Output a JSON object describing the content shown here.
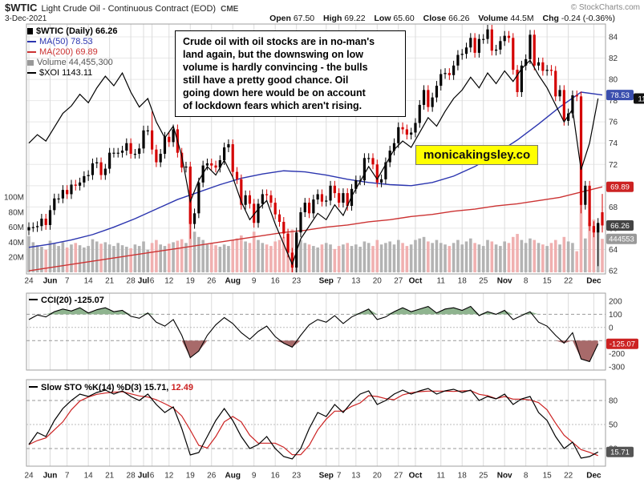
{
  "header": {
    "symbol": "$WTIC",
    "title": "Light Crude Oil - Continuous Contract (EOD)",
    "exchange": "CME",
    "copyright": "© StockCharts.com",
    "date": "3-Dec-2021",
    "quote": {
      "open_label": "Open",
      "open": "67.50",
      "high_label": "High",
      "high": "69.22",
      "low_label": "Low",
      "low": "65.60",
      "close_label": "Close",
      "close": "66.26",
      "volume_label": "Volume",
      "volume": "44.5M",
      "chg_label": "Chg",
      "chg": "-0.24 (-0.36%)"
    }
  },
  "main_legend": {
    "wtic": "$WTIC (Daily) 66.26",
    "ma50": "MA(50) 78.53",
    "ma200": "MA(200) 69.89",
    "volume": "Volume 44,455,300",
    "xoi": "$XOI 1143.11"
  },
  "annotation": {
    "lines": [
      "Crude oil with oil stocks are in no-man's",
      "land again, but the downswing on low",
      "volume is hardly convincing - the bulls",
      "still have a pretty good chance. Oil",
      "going down here would be on account",
      "of lockdown fears which aren't rising."
    ]
  },
  "watermark": "monicakingsley.co",
  "cci_legend": {
    "label": "CCI(20)",
    "value": "-125.07"
  },
  "sto_legend": {
    "label": "Slow STO %K(14) %D(3)",
    "k": "15.71,",
    "d": "12.49"
  },
  "colors": {
    "candle_up": "#000000",
    "candle_down": "#d40000",
    "ma50": "#2b35af",
    "ma200": "#cc3333",
    "xoi": "#000000",
    "vol_up": "#b3b3b3",
    "vol_down": "#f0b0b0",
    "cci_line": "#000000",
    "cci_green": "#8fb48f",
    "cci_red": "#a86a6a",
    "sto_k": "#000000",
    "sto_d": "#cc2222",
    "grid": "#dcdcdc",
    "hgrid": "#e8e8e8",
    "frame": "#9f9f9f",
    "axis_text": "#333333",
    "watermark_bg": "#ffff00",
    "callout_blue": "#3a4eae",
    "callout_red": "#cc2222",
    "callout_dark": "#444444",
    "callout_gray": "#999999",
    "callout_black": "#111111"
  },
  "chart_data": [
    {
      "type": "candlestick",
      "title": "$WTIC (Daily)",
      "ylabel": "Price",
      "ylim": [
        62,
        84
      ],
      "yticks": [
        84,
        82,
        80,
        78,
        76,
        74,
        72,
        70,
        68,
        66,
        64,
        62
      ],
      "volume_ticks": [
        [
          "100M",
          100
        ],
        [
          "80M",
          80
        ],
        [
          "60M",
          60
        ],
        [
          "40M",
          40
        ],
        [
          "20M",
          20
        ]
      ],
      "xticks": [
        [
          "24",
          0
        ],
        [
          "Jun",
          5,
          1
        ],
        [
          "7",
          9
        ],
        [
          "14",
          14
        ],
        [
          "21",
          19
        ],
        [
          "28",
          24
        ],
        [
          "Jul",
          27,
          1
        ],
        [
          "6",
          29
        ],
        [
          "12",
          33
        ],
        [
          "19",
          38
        ],
        [
          "26",
          43
        ],
        [
          "Aug",
          48,
          1
        ],
        [
          "9",
          53
        ],
        [
          "16",
          58
        ],
        [
          "23",
          63
        ],
        [
          "Sep",
          70,
          1
        ],
        [
          "7",
          73
        ],
        [
          "13",
          77
        ],
        [
          "20",
          82
        ],
        [
          "27",
          87
        ],
        [
          "Oct",
          91,
          1
        ],
        [
          "11",
          97
        ],
        [
          "18",
          102
        ],
        [
          "25",
          107
        ],
        [
          "Nov",
          112,
          1
        ],
        [
          "8",
          117
        ],
        [
          "15",
          122
        ],
        [
          "22",
          127
        ],
        [
          "Dec",
          133,
          1
        ]
      ],
      "closes": [
        66.1,
        66.1,
        66.2,
        66.9,
        66.3,
        67.7,
        68.8,
        68.8,
        69.6,
        69.2,
        70.1,
        70.0,
        70.3,
        70.9,
        71.0,
        72.1,
        72.2,
        71.0,
        71.6,
        73.1,
        73.1,
        73.1,
        73.3,
        74.0,
        73.0,
        73.0,
        73.5,
        75.2,
        75.2,
        73.4,
        72.2,
        73.0,
        74.6,
        74.1,
        75.3,
        73.1,
        71.7,
        71.8,
        66.4,
        67.4,
        70.3,
        71.9,
        72.1,
        71.9,
        71.7,
        72.4,
        73.6,
        73.9,
        71.3,
        70.6,
        68.2,
        69.1,
        68.3,
        66.5,
        68.3,
        69.2,
        69.1,
        68.4,
        67.3,
        66.6,
        65.5,
        63.7,
        62.3,
        65.6,
        67.5,
        68.4,
        67.4,
        68.7,
        69.2,
        68.5,
        68.6,
        70.0,
        69.3,
        68.4,
        69.3,
        68.1,
        69.7,
        70.5,
        70.5,
        72.6,
        72.6,
        72.0,
        70.3,
        70.6,
        72.2,
        73.3,
        74.0,
        75.5,
        75.3,
        74.8,
        75.0,
        75.9,
        77.6,
        79.0,
        77.4,
        78.3,
        79.4,
        80.5,
        80.6,
        80.4,
        81.3,
        82.3,
        82.4,
        83.0,
        83.9,
        82.5,
        83.8,
        83.8,
        84.7,
        82.7,
        82.8,
        83.6,
        84.1,
        83.9,
        80.9,
        78.8,
        81.3,
        81.9,
        84.2,
        81.3,
        81.6,
        80.8,
        80.9,
        80.8,
        78.4,
        79.0,
        76.1,
        76.8,
        78.5,
        78.4,
        68.2,
        70.0,
        66.2,
        65.6,
        66.5,
        66.26
      ],
      "open_overrides": {
        "135": 67.5
      },
      "high_overrides": {
        "29": 76.98,
        "108": 85.41,
        "135": 69.22
      },
      "low_overrides": {
        "38": 65.0,
        "130": 67.4,
        "134": 62.43,
        "135": 65.6
      },
      "volumes_m": [
        48,
        40,
        36,
        34,
        30,
        42,
        38,
        35,
        40,
        33,
        37,
        39,
        36,
        33,
        35,
        44,
        41,
        38,
        40,
        37,
        35,
        39,
        36,
        34,
        32,
        37,
        35,
        41,
        30,
        39,
        43,
        37,
        35,
        38,
        40,
        42,
        44,
        39,
        86,
        54,
        47,
        43,
        37,
        39,
        36,
        34,
        37,
        35,
        43,
        45,
        49,
        41,
        39,
        54,
        43,
        39,
        37,
        35,
        41,
        43,
        47,
        51,
        57,
        49,
        43,
        39,
        37,
        35,
        33,
        37,
        39,
        37,
        31,
        35,
        37,
        39,
        35,
        37,
        34,
        41,
        39,
        35,
        43,
        37,
        39,
        41,
        37,
        43,
        39,
        35,
        37,
        43,
        45,
        47,
        41,
        39,
        43,
        39,
        37,
        35,
        39,
        43,
        37,
        41,
        45,
        39,
        37,
        35,
        43,
        41,
        37,
        35,
        41,
        39,
        47,
        51,
        43,
        39,
        45,
        43,
        39,
        37,
        35,
        39,
        43,
        37,
        47,
        41,
        39,
        28,
        90,
        45,
        66,
        70,
        64,
        44.5
      ],
      "ma50": {
        "idx": [
          0,
          5,
          10,
          15,
          20,
          25,
          30,
          35,
          40,
          45,
          50,
          55,
          60,
          65,
          70,
          75,
          80,
          85,
          90,
          95,
          100,
          105,
          110,
          115,
          120,
          125,
          130,
          135
        ],
        "val": [
          64.2,
          64.5,
          64.9,
          65.4,
          66.1,
          66.9,
          67.8,
          68.7,
          69.4,
          70.1,
          70.7,
          71.1,
          71.4,
          71.3,
          71.0,
          70.6,
          70.3,
          70.1,
          70.0,
          70.3,
          70.9,
          71.8,
          73.0,
          74.3,
          75.8,
          77.4,
          78.8,
          78.53
        ]
      },
      "ma200": {
        "idx": [
          0,
          5,
          10,
          15,
          20,
          25,
          30,
          35,
          40,
          45,
          50,
          55,
          60,
          65,
          70,
          75,
          80,
          85,
          90,
          95,
          100,
          105,
          110,
          115,
          120,
          125,
          130,
          135
        ],
        "val": [
          62.0,
          62.3,
          62.6,
          62.9,
          63.2,
          63.5,
          63.8,
          64.1,
          64.4,
          64.7,
          65.0,
          65.3,
          65.6,
          65.8,
          66.1,
          66.3,
          66.6,
          66.8,
          67.1,
          67.3,
          67.6,
          67.8,
          68.1,
          68.3,
          68.6,
          68.9,
          69.4,
          69.89
        ]
      },
      "xoi_step2": [
        74.0,
        74.8,
        74.2,
        75.5,
        76.8,
        77.5,
        78.6,
        77.8,
        79.2,
        80.3,
        79.4,
        80.6,
        78.8,
        77.4,
        78.2,
        76.0,
        74.5,
        75.6,
        72.8,
        68.5,
        70.5,
        71.8,
        71.0,
        72.4,
        70.8,
        68.5,
        66.8,
        67.8,
        68.6,
        66.4,
        64.5,
        62.6,
        65.0,
        66.2,
        67.4,
        66.8,
        68.2,
        67.2,
        69.0,
        70.4,
        71.8,
        70.6,
        72.0,
        73.4,
        74.2,
        73.6,
        75.0,
        76.4,
        75.6,
        77.0,
        78.2,
        79.0,
        80.2,
        79.2,
        80.6,
        79.6,
        80.8,
        79.8,
        81.0,
        81.8,
        80.4,
        79.2,
        77.6,
        76.0,
        77.2,
        71.5,
        74.0,
        78.2
      ],
      "callouts": [
        {
          "text": "78.53",
          "bg": "#3a4eae",
          "axis": "price",
          "value": 78.53,
          "w": 34
        },
        {
          "text": "1143.11",
          "bg": "#111111",
          "axis": "price",
          "value": 78.2,
          "w": 44,
          "x_offset": 34
        },
        {
          "text": "69.89",
          "bg": "#cc2222",
          "axis": "price",
          "value": 69.89,
          "w": 34
        },
        {
          "text": "66.26",
          "bg": "#444444",
          "axis": "price",
          "value": 66.26,
          "w": 34
        },
        {
          "text": "444553",
          "bg": "#999999",
          "axis": "volume",
          "value": 44.455,
          "w": 38
        }
      ]
    },
    {
      "type": "line",
      "title": "CCI(20)",
      "last_value": -125.07,
      "ylim": [
        -300,
        200
      ],
      "yticks": [
        200,
        100,
        0,
        -200,
        -300
      ],
      "hlines": [
        100,
        0,
        -100
      ],
      "fill_above": 100,
      "fill_below": -100,
      "x_step": 2,
      "values": [
        60,
        95,
        80,
        120,
        140,
        125,
        150,
        110,
        135,
        150,
        120,
        130,
        85,
        70,
        110,
        40,
        10,
        60,
        -60,
        -230,
        -180,
        -60,
        20,
        75,
        30,
        -40,
        -90,
        -30,
        10,
        -70,
        -120,
        -150,
        -60,
        20,
        60,
        40,
        90,
        30,
        80,
        110,
        140,
        60,
        80,
        120,
        150,
        120,
        140,
        160,
        110,
        140,
        150,
        130,
        160,
        90,
        120,
        100,
        130,
        60,
        90,
        120,
        40,
        10,
        -60,
        -120,
        -40,
        -240,
        -260,
        -125
      ],
      "callout": {
        "text": "-125.07",
        "bg": "#cc2222",
        "w": 40
      }
    },
    {
      "type": "line",
      "title": "Slow STO %K(14) %D(3)",
      "k_last": 15.71,
      "d_last": 12.49,
      "ylim": [
        0,
        100
      ],
      "yticks": [
        80,
        50,
        20
      ],
      "hlines": [
        80,
        50,
        20
      ],
      "x_step": 2,
      "k": [
        25,
        40,
        35,
        55,
        70,
        80,
        88,
        85,
        90,
        93,
        88,
        92,
        85,
        80,
        88,
        75,
        65,
        72,
        45,
        12,
        15,
        35,
        55,
        70,
        55,
        35,
        20,
        25,
        35,
        20,
        10,
        7,
        20,
        45,
        65,
        60,
        75,
        65,
        78,
        88,
        92,
        75,
        80,
        88,
        93,
        88,
        92,
        95,
        88,
        92,
        94,
        90,
        93,
        80,
        85,
        82,
        88,
        75,
        82,
        85,
        65,
        55,
        35,
        20,
        28,
        8,
        10,
        15.71
      ],
      "callout": {
        "text": "15.71",
        "bg": "#555555",
        "w": 34
      }
    }
  ]
}
